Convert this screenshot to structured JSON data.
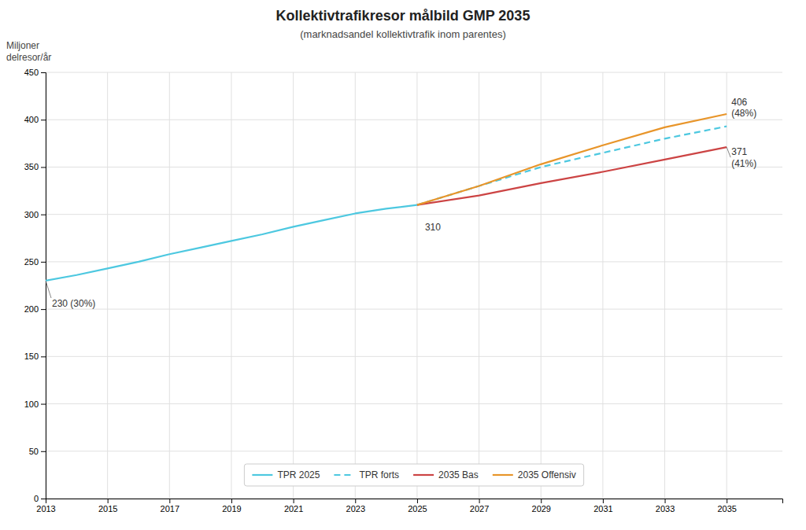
{
  "chart_data": {
    "type": "line",
    "title": "Kollektivtrafikresor målbild GMP 2035",
    "subtitle": "(marknadsandel kollektivtrafik inom parentes)",
    "y_label": [
      "Miljoner",
      "delresor/år"
    ],
    "series": [
      {
        "name": "TPR 2025",
        "color": "#4dc8e0",
        "line_style": "solid",
        "x": [
          2013,
          2014,
          2015,
          2016,
          2017,
          2018,
          2019,
          2020,
          2021,
          2022,
          2023,
          2024,
          2025
        ],
        "values": [
          230,
          236,
          243,
          250,
          258,
          265,
          272,
          279,
          287,
          294,
          301,
          306,
          310
        ]
      },
      {
        "name": "TPR forts",
        "color": "#4dc8e0",
        "line_style": "dashed",
        "x": [
          2025,
          2027,
          2029,
          2031,
          2033,
          2035
        ],
        "values": [
          310,
          330,
          350,
          365,
          380,
          393
        ]
      },
      {
        "name": "2035 Bas",
        "color": "#cc4444",
        "line_style": "solid",
        "x": [
          2025,
          2027,
          2029,
          2031,
          2033,
          2035
        ],
        "values": [
          310,
          320,
          333,
          345,
          358,
          371
        ]
      },
      {
        "name": "2035 Offensiv",
        "color": "#e8952a",
        "line_style": "solid",
        "x": [
          2025,
          2027,
          2029,
          2031,
          2033,
          2035
        ],
        "values": [
          310,
          330,
          353,
          373,
          392,
          406
        ]
      }
    ],
    "xlim": [
      2013,
      2036.8
    ],
    "ylim": [
      0,
      450
    ],
    "xticks": [
      2013,
      2015,
      2017,
      2019,
      2021,
      2023,
      2025,
      2027,
      2029,
      2031,
      2033,
      2035
    ],
    "yticks": [
      0,
      50,
      100,
      150,
      200,
      250,
      300,
      350,
      400,
      450
    ],
    "grid": true,
    "legend": "lower center",
    "annotations": [
      {
        "text": "230 (30%)",
        "x": 2013,
        "y": 230
      },
      {
        "text": "310",
        "x": 2025,
        "y": 310
      },
      {
        "text": "406\n(48%)",
        "x": 2035,
        "y": 406
      },
      {
        "text": "371\n(41%)",
        "x": 2035,
        "y": 371
      }
    ]
  }
}
